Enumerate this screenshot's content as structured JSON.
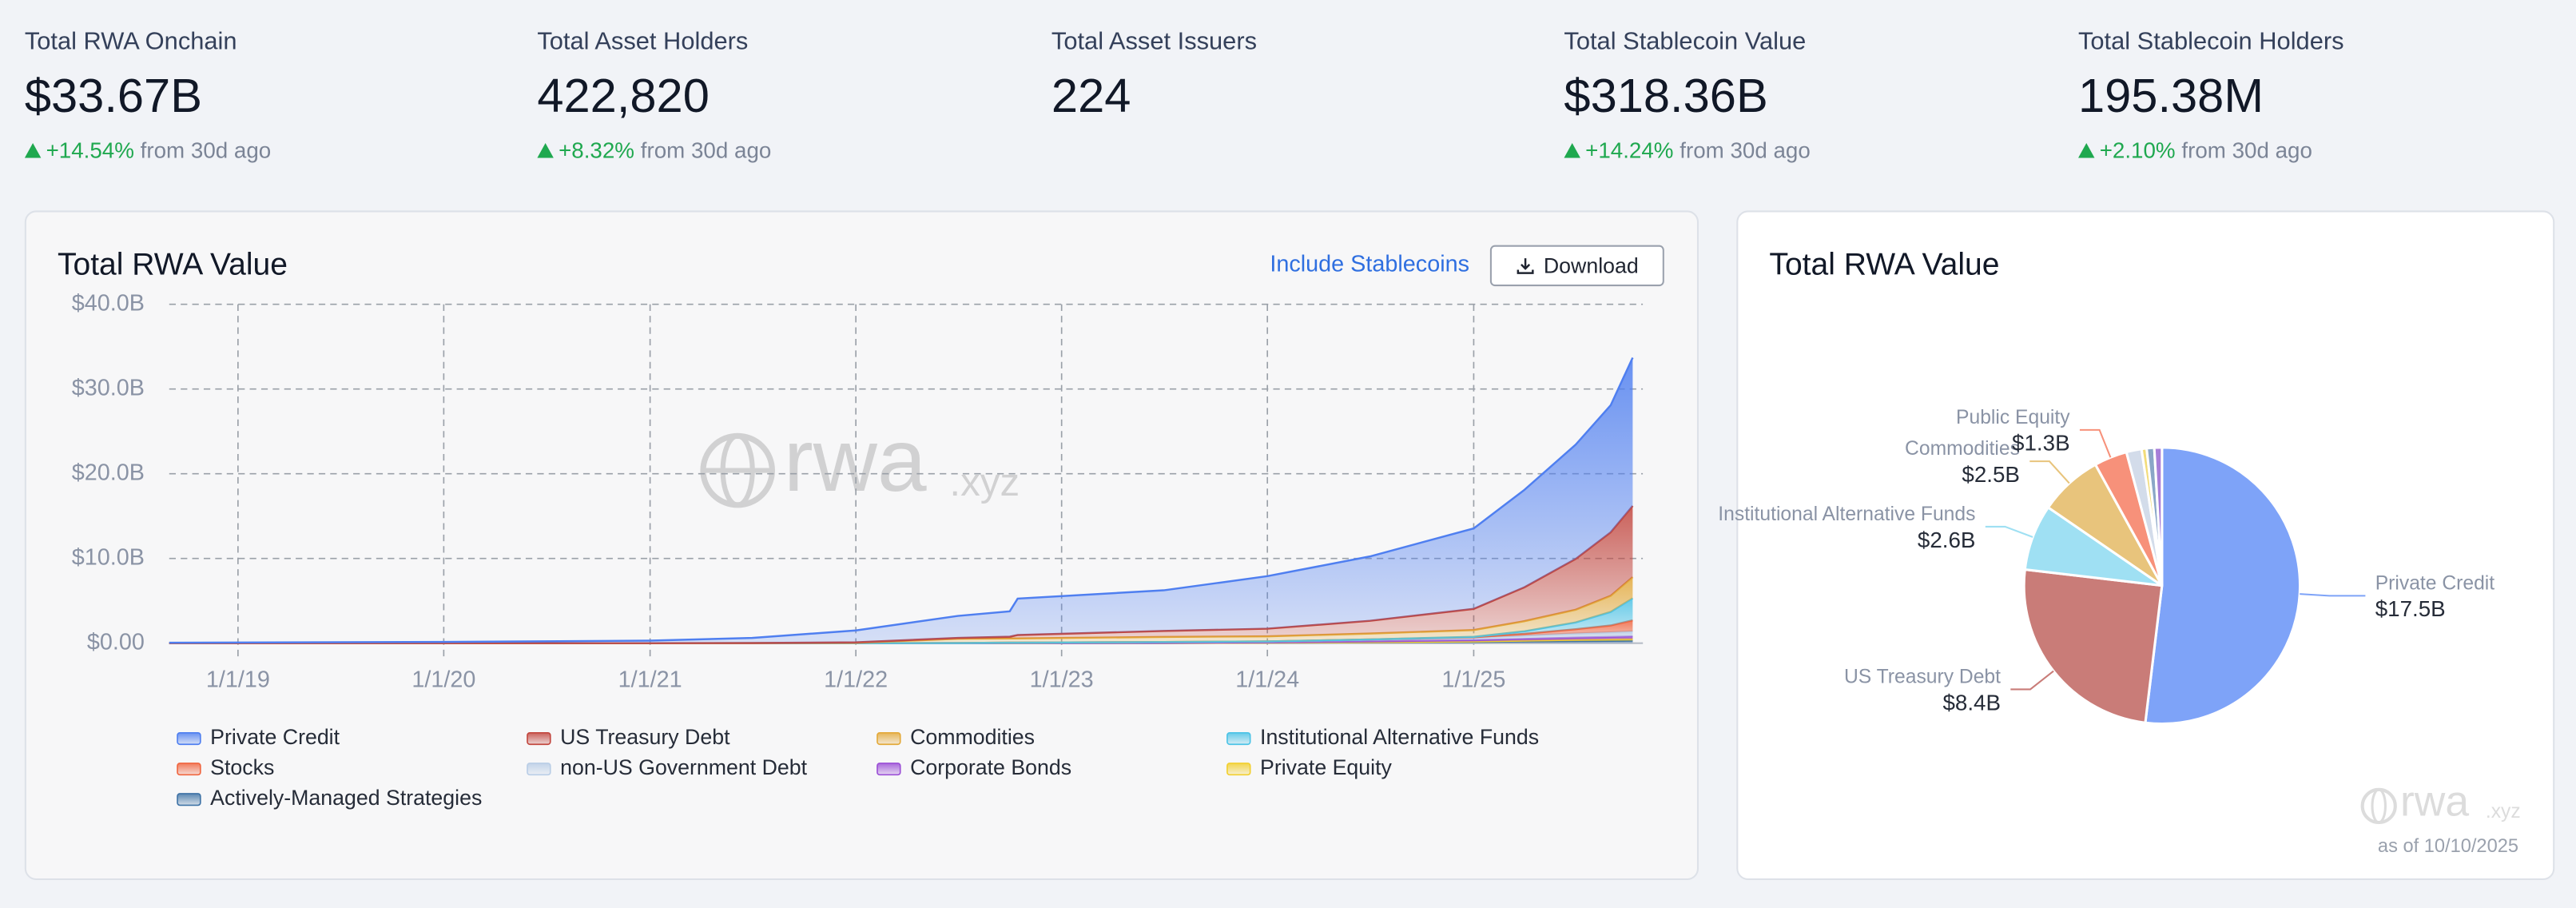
{
  "stats": [
    {
      "label": "Total RWA Onchain",
      "value": "$33.67B",
      "change": "+14.54%"
    },
    {
      "label": "Total Asset Holders",
      "value": "422,820",
      "change": "+8.32%"
    },
    {
      "label": "Total Asset Issuers",
      "value": "224"
    },
    {
      "label": "Total Stablecoin Value",
      "value": "$318.36B",
      "change": "+14.24%"
    },
    {
      "label": "Total Stablecoin Holders",
      "value": "195.38M",
      "change": "+2.10%"
    }
  ],
  "stats_note": "from 30d ago",
  "controls": {
    "toggle": "Include Stablecoins",
    "download": "Download"
  },
  "branding": {
    "name": "rwa",
    "domain": ".xyz"
  },
  "as_of": "as of 10/10/2025",
  "chart_data": [
    {
      "type": "area",
      "title": "Total RWA Value",
      "stacked": true,
      "grid": true,
      "x": [
        "2018-09-01",
        "2019-01-01",
        "2020-01-01",
        "2021-01-01",
        "2021-07-01",
        "2022-01-01",
        "2022-07-01",
        "2022-10-01",
        "2022-10-15",
        "2023-07-01",
        "2024-01-01",
        "2024-07-01",
        "2025-01-01",
        "2025-04-01",
        "2025-07-01",
        "2025-09-01",
        "2025-10-10"
      ],
      "xlim": [
        "2018-09-01",
        "2025-10-28"
      ],
      "xticks": [
        {
          "value": "2019-01-01",
          "label": "1/1/19"
        },
        {
          "value": "2020-01-01",
          "label": "1/1/20"
        },
        {
          "value": "2021-01-01",
          "label": "1/1/21"
        },
        {
          "value": "2022-01-01",
          "label": "1/1/22"
        },
        {
          "value": "2023-01-01",
          "label": "1/1/23"
        },
        {
          "value": "2024-01-01",
          "label": "1/1/24"
        },
        {
          "value": "2025-01-01",
          "label": "1/1/25"
        }
      ],
      "ylim": [
        0,
        40
      ],
      "yticks": [
        {
          "value": 0,
          "label": "$0.00"
        },
        {
          "value": 10,
          "label": "$10.0B"
        },
        {
          "value": 20,
          "label": "$20.0B"
        },
        {
          "value": 30,
          "label": "$30.0B"
        },
        {
          "value": 40,
          "label": "$40.0B"
        }
      ],
      "series": [
        {
          "name": "Private Credit",
          "color": "#4f7ff0",
          "values": [
            0.05,
            0.08,
            0.15,
            0.3,
            0.6,
            1.4,
            2.6,
            3.0,
            4.3,
            4.8,
            6.2,
            7.6,
            9.5,
            11.5,
            13.5,
            15.0,
            17.5
          ]
        },
        {
          "name": "US Treasury Debt",
          "color": "#c2473f",
          "values": [
            0,
            0,
            0,
            0,
            0,
            0.05,
            0.1,
            0.2,
            0.4,
            0.7,
            0.9,
            1.5,
            2.5,
            4.0,
            6.0,
            7.5,
            8.4
          ]
        },
        {
          "name": "Commodities",
          "color": "#e3a93a",
          "values": [
            0,
            0,
            0,
            0,
            0.02,
            0.05,
            0.5,
            0.5,
            0.5,
            0.6,
            0.6,
            0.7,
            0.8,
            1.2,
            1.5,
            1.9,
            2.5
          ]
        },
        {
          "name": "Institutional Alternative Funds",
          "color": "#4cc3e6",
          "values": [
            0,
            0,
            0,
            0,
            0,
            0,
            0,
            0,
            0,
            0,
            0,
            0,
            0.05,
            0.3,
            0.8,
            1.6,
            2.6
          ]
        },
        {
          "name": "Stocks",
          "color": "#f0653f",
          "values": [
            0,
            0,
            0,
            0,
            0,
            0,
            0,
            0,
            0,
            0,
            0.01,
            0.02,
            0.05,
            0.2,
            0.5,
            0.8,
            1.3
          ]
        },
        {
          "name": "non-US Government Debt",
          "color": "#b9cde6",
          "values": [
            0,
            0,
            0,
            0,
            0,
            0,
            0.02,
            0.05,
            0.05,
            0.1,
            0.1,
            0.2,
            0.3,
            0.4,
            0.5,
            0.55,
            0.6
          ]
        },
        {
          "name": "Corporate Bonds",
          "color": "#9b4fd6",
          "values": [
            0,
            0,
            0,
            0,
            0,
            0,
            0,
            0.01,
            0.01,
            0.02,
            0.05,
            0.1,
            0.15,
            0.2,
            0.25,
            0.28,
            0.3
          ]
        },
        {
          "name": "Private Equity",
          "color": "#f2cf2e",
          "values": [
            0,
            0,
            0,
            0,
            0,
            0,
            0,
            0,
            0,
            0,
            0,
            0.02,
            0.05,
            0.1,
            0.15,
            0.18,
            0.2
          ]
        },
        {
          "name": "Actively-Managed Strategies",
          "color": "#3f73a6",
          "values": [
            0,
            0,
            0,
            0,
            0,
            0,
            0,
            0,
            0,
            0.02,
            0.05,
            0.1,
            0.15,
            0.2,
            0.25,
            0.28,
            0.3
          ]
        }
      ]
    },
    {
      "type": "pie",
      "title": "Total RWA Value",
      "categories": [
        "Private Credit",
        "US Treasury Debt",
        "Institutional Alternative Funds",
        "Commodities",
        "Public Equity",
        null,
        null,
        null,
        null
      ],
      "values": [
        17.5,
        8.4,
        2.6,
        2.5,
        1.3,
        0.6,
        0.2,
        0.3,
        0.3
      ],
      "value_labels": [
        "$17.5B",
        "$8.4B",
        "$2.6B",
        "$2.5B",
        "$1.3B",
        null,
        null,
        null,
        null
      ],
      "colors": [
        "#7ea3f8",
        "#c97c78",
        "#9fe0f3",
        "#e8c47c",
        "#f7917a",
        "#d3dcea",
        "#f2dc7a",
        "#8aa6c7",
        "#a77ed8"
      ]
    }
  ]
}
